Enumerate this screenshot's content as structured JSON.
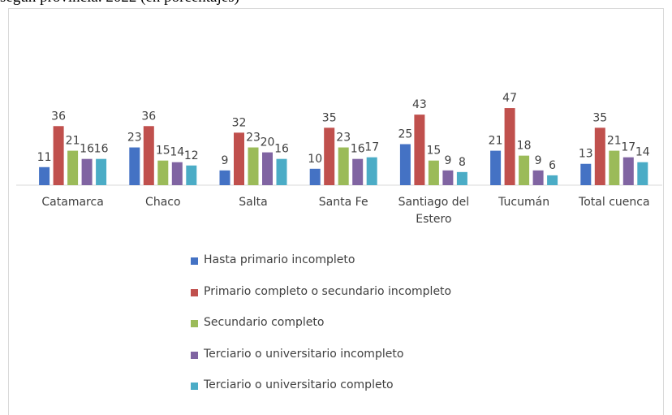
{
  "chart_data": {
    "type": "bar",
    "title": "según provincia. 2022 (en porcentajes)",
    "categories": [
      "Catamarca",
      "Chaco",
      "Salta",
      "Santa Fe",
      "Santiago del Estero",
      "Tucumán",
      "Total cuenca"
    ],
    "series": [
      {
        "name": "Hasta primario incompleto",
        "color": "#4472c4",
        "values": [
          11,
          23,
          9,
          10,
          25,
          21,
          13
        ]
      },
      {
        "name": "Primario completo o secundario incompleto",
        "color": "#c0504d",
        "values": [
          36,
          36,
          32,
          35,
          43,
          47,
          35
        ]
      },
      {
        "name": "Secundario completo",
        "color": "#9bbb59",
        "values": [
          21,
          15,
          23,
          23,
          15,
          18,
          21
        ]
      },
      {
        "name": "Terciario o universitario incompleto",
        "color": "#8064a2",
        "values": [
          16,
          14,
          20,
          16,
          9,
          9,
          17
        ]
      },
      {
        "name": "Terciario o universitario completo",
        "color": "#4bacc6",
        "values": [
          16,
          12,
          16,
          17,
          8,
          6,
          14
        ]
      }
    ],
    "legend": "bottom"
  }
}
